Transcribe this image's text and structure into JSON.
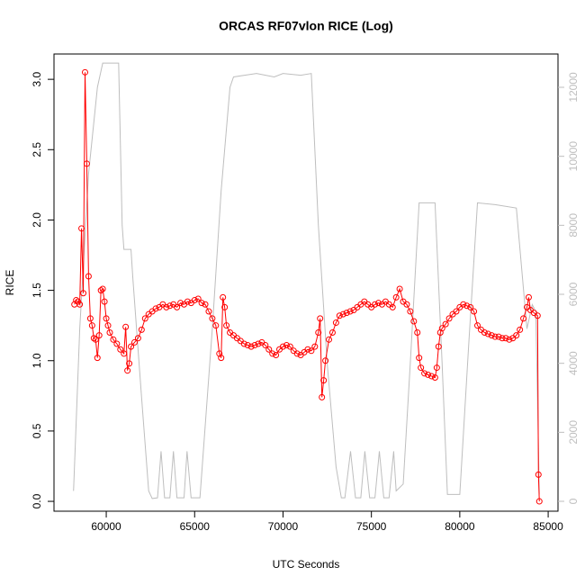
{
  "chart_data": {
    "type": "line",
    "title": "ORCAS RF07vlon RICE (Log)",
    "x_label": "UTC Seconds",
    "y_label": "RICE",
    "xlim": [
      57044,
      85556
    ],
    "xticks": [
      60000,
      65000,
      70000,
      75000,
      80000,
      85000
    ],
    "ylim": [
      -0.07,
      3.18
    ],
    "yticks": [
      {
        "value": 0,
        "label": "0.0"
      },
      0.5,
      {
        "value": 1,
        "label": "1.0"
      },
      1.5,
      {
        "value": 2,
        "label": "2.0"
      },
      2.5,
      {
        "value": 3,
        "label": "3.0"
      }
    ],
    "y2lim": [
      -287,
      12965
    ],
    "y2ticks": [
      0,
      2000,
      4000,
      6000,
      8000,
      10000,
      12000
    ],
    "y2_color": "#bebebe",
    "grid": false,
    "series": [
      {
        "color": "#ff0000",
        "marker": "circle",
        "x": [
          58200,
          58300,
          58400,
          58500,
          58600,
          58700,
          58800,
          58900,
          59000,
          59100,
          59200,
          59300,
          59400,
          59500,
          59600,
          59700,
          59800,
          59900,
          60000,
          60100,
          60200,
          60400,
          60600,
          60800,
          61000,
          61100,
          61200,
          61300,
          61400,
          61600,
          61800,
          62000,
          62200,
          62400,
          62600,
          62800,
          63000,
          63200,
          63400,
          63600,
          63800,
          64000,
          64200,
          64400,
          64600,
          64800,
          65000,
          65200,
          65400,
          65600,
          65800,
          66000,
          66200,
          66400,
          66500,
          66600,
          66700,
          66800,
          67000,
          67200,
          67400,
          67600,
          67800,
          68000,
          68200,
          68400,
          68600,
          68800,
          69000,
          69200,
          69400,
          69600,
          69800,
          70000,
          70200,
          70400,
          70600,
          70800,
          71000,
          71200,
          71400,
          71600,
          71800,
          72000,
          72100,
          72200,
          72300,
          72400,
          72600,
          72800,
          73000,
          73200,
          73400,
          73600,
          73800,
          74000,
          74200,
          74400,
          74600,
          74800,
          75000,
          75200,
          75400,
          75600,
          75800,
          76000,
          76200,
          76400,
          76600,
          76800,
          77000,
          77200,
          77400,
          77600,
          77700,
          77800,
          78000,
          78200,
          78400,
          78600,
          78700,
          78800,
          78900,
          79000,
          79200,
          79400,
          79600,
          79800,
          80000,
          80200,
          80400,
          80600,
          80800,
          81000,
          81200,
          81400,
          81600,
          81800,
          82000,
          82200,
          82400,
          82600,
          82800,
          83000,
          83200,
          83400,
          83600,
          83800,
          83900,
          84000,
          84200,
          84400,
          84450,
          84500
        ],
        "values": [
          1.4,
          1.43,
          1.42,
          1.4,
          1.94,
          1.48,
          3.05,
          2.4,
          1.6,
          1.3,
          1.25,
          1.16,
          1.15,
          1.02,
          1.18,
          1.5,
          1.51,
          1.42,
          1.3,
          1.25,
          1.2,
          1.15,
          1.12,
          1.08,
          1.05,
          1.24,
          0.93,
          0.98,
          1.1,
          1.13,
          1.16,
          1.22,
          1.3,
          1.33,
          1.35,
          1.37,
          1.38,
          1.4,
          1.38,
          1.39,
          1.4,
          1.38,
          1.41,
          1.4,
          1.42,
          1.41,
          1.43,
          1.44,
          1.41,
          1.4,
          1.35,
          1.3,
          1.25,
          1.05,
          1.02,
          1.45,
          1.38,
          1.25,
          1.2,
          1.18,
          1.16,
          1.14,
          1.12,
          1.11,
          1.1,
          1.11,
          1.12,
          1.13,
          1.11,
          1.08,
          1.05,
          1.04,
          1.08,
          1.1,
          1.11,
          1.1,
          1.07,
          1.05,
          1.04,
          1.06,
          1.08,
          1.07,
          1.1,
          1.2,
          1.3,
          0.74,
          0.86,
          1.0,
          1.15,
          1.2,
          1.27,
          1.32,
          1.33,
          1.34,
          1.35,
          1.36,
          1.38,
          1.4,
          1.42,
          1.4,
          1.38,
          1.4,
          1.41,
          1.4,
          1.42,
          1.4,
          1.38,
          1.45,
          1.51,
          1.42,
          1.4,
          1.35,
          1.28,
          1.2,
          1.02,
          0.95,
          0.91,
          0.9,
          0.89,
          0.88,
          0.95,
          1.1,
          1.2,
          1.23,
          1.26,
          1.3,
          1.33,
          1.35,
          1.38,
          1.4,
          1.39,
          1.38,
          1.35,
          1.25,
          1.22,
          1.2,
          1.19,
          1.18,
          1.17,
          1.17,
          1.16,
          1.16,
          1.15,
          1.16,
          1.18,
          1.22,
          1.3,
          1.38,
          1.45,
          1.36,
          1.34,
          1.32,
          0.19,
          0.0
        ]
      },
      {
        "color": "#bebebe",
        "axis": "y2",
        "x": [
          58150,
          58500,
          59000,
          59500,
          59800,
          60700,
          60900,
          61000,
          61400,
          61500,
          62000,
          62400,
          62600,
          62900,
          63100,
          63300,
          63600,
          63800,
          64000,
          64400,
          64570,
          64800,
          65300,
          66000,
          66500,
          67000,
          67200,
          68500,
          69500,
          70000,
          71000,
          71600,
          72000,
          72500,
          73000,
          73300,
          73500,
          73820,
          74100,
          74400,
          74630,
          74900,
          75200,
          75450,
          75700,
          76000,
          76260,
          76400,
          76800,
          77200,
          77700,
          78600,
          79000,
          79300,
          80000,
          80500,
          81000,
          82000,
          83200,
          83800,
          84100,
          84300,
          84500
        ],
        "values": [
          300,
          5000,
          9500,
          12000,
          12700,
          12700,
          8000,
          7300,
          7300,
          6500,
          3000,
          300,
          80,
          100,
          1450,
          100,
          100,
          1450,
          100,
          100,
          1450,
          100,
          100,
          5000,
          9000,
          12000,
          12300,
          12400,
          12300,
          12400,
          12350,
          12400,
          8000,
          4000,
          1000,
          100,
          100,
          1450,
          100,
          100,
          1450,
          100,
          100,
          1450,
          100,
          100,
          1450,
          300,
          500,
          4000,
          8650,
          8650,
          4000,
          200,
          200,
          4500,
          8650,
          8600,
          8500,
          5000,
          5700,
          5500,
          200
        ]
      }
    ]
  }
}
